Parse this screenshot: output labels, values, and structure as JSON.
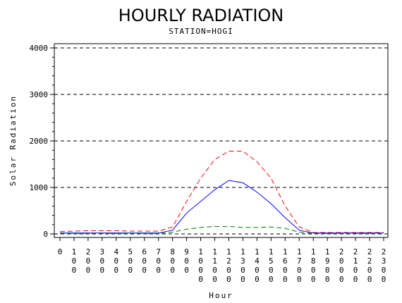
{
  "chart_data": {
    "type": "line",
    "title": "HOURLY RADIATION",
    "subtitle": "STATION=HOGI",
    "xlabel": "Hour",
    "ylabel": "Solar Radiation",
    "xlim": [
      0,
      2300
    ],
    "ylim": [
      0,
      4000
    ],
    "x_ticks": [
      0,
      100,
      200,
      300,
      400,
      500,
      600,
      700,
      800,
      900,
      1000,
      1100,
      1200,
      1300,
      1400,
      1500,
      1600,
      1700,
      1800,
      1900,
      2000,
      2100,
      2200,
      2300
    ],
    "y_ticks": [
      0,
      1000,
      2000,
      3000,
      4000
    ],
    "grid": "horizontal dashed at major y ticks",
    "legend": "none",
    "x": [
      0,
      100,
      200,
      300,
      400,
      500,
      600,
      700,
      800,
      900,
      1000,
      1100,
      1200,
      1300,
      1400,
      1500,
      1600,
      1700,
      1800,
      1900,
      2000,
      2100,
      2200,
      2300
    ],
    "series": [
      {
        "color": "#ff0000",
        "style": "dashed",
        "values": [
          50,
          60,
          70,
          70,
          70,
          60,
          60,
          60,
          150,
          700,
          1200,
          1600,
          1780,
          1780,
          1550,
          1200,
          600,
          150,
          30,
          30,
          30,
          30,
          30,
          30
        ]
      },
      {
        "color": "#0000ff",
        "style": "solid",
        "values": [
          20,
          20,
          20,
          20,
          20,
          20,
          20,
          20,
          80,
          450,
          700,
          950,
          1150,
          1100,
          900,
          650,
          350,
          80,
          20,
          20,
          20,
          20,
          20,
          20
        ]
      },
      {
        "color": "#008000",
        "style": "dashed",
        "values": [
          10,
          10,
          10,
          10,
          10,
          10,
          10,
          10,
          40,
          100,
          140,
          160,
          160,
          140,
          140,
          150,
          120,
          40,
          10,
          10,
          10,
          10,
          10,
          10
        ]
      }
    ]
  }
}
